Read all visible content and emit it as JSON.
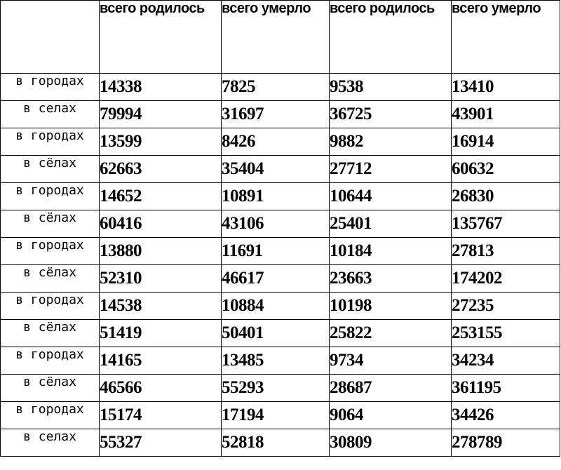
{
  "table": {
    "headers": [
      "всего родилось",
      "всего умерло",
      "всего родилось",
      "всего умерло"
    ],
    "rows": [
      {
        "label": "в городах",
        "values": [
          "14338",
          "7825",
          "9538",
          "13410"
        ]
      },
      {
        "label": "в селах",
        "values": [
          "79994",
          "31697",
          "36725",
          "43901"
        ]
      },
      {
        "label": "в городах",
        "values": [
          "13599",
          "8426",
          "9882",
          "16914"
        ]
      },
      {
        "label": "в сёлах",
        "values": [
          "62663",
          "35404",
          "27712",
          "60632"
        ]
      },
      {
        "label": "в городах",
        "values": [
          "14652",
          "10891",
          "10644",
          "26830"
        ]
      },
      {
        "label": "в сёлах",
        "values": [
          "60416",
          "43106",
          "25401",
          "135767"
        ]
      },
      {
        "label": "в городах",
        "values": [
          "13880",
          "11691",
          "10184",
          "27813"
        ]
      },
      {
        "label": "в сёлах",
        "values": [
          "52310",
          "46617",
          "23663",
          "174202"
        ]
      },
      {
        "label": "в городах",
        "values": [
          "14538",
          "10884",
          "10198",
          "27235"
        ]
      },
      {
        "label": "в сёлах",
        "values": [
          "51419",
          "50401",
          "25822",
          "253155"
        ]
      },
      {
        "label": "в городах",
        "values": [
          "14165",
          "13485",
          "9734",
          "34234"
        ]
      },
      {
        "label": "в сёлах",
        "values": [
          "46566",
          "55293",
          "28687",
          "361195"
        ]
      },
      {
        "label": "в городах",
        "values": [
          "15174",
          "17194",
          "9064",
          "34426"
        ]
      },
      {
        "label": "в селах",
        "values": [
          "55327",
          "52818",
          "30809",
          "278789"
        ]
      }
    ]
  }
}
